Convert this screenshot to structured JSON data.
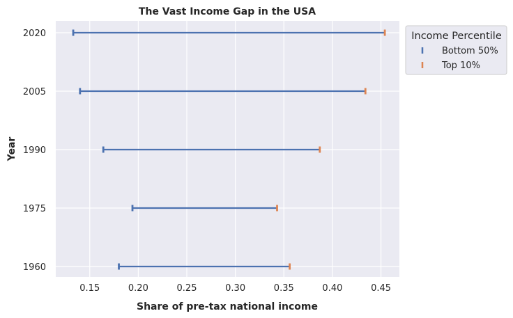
{
  "chart_data": {
    "type": "dumbbell",
    "title": "The Vast Income Gap in the USA",
    "xlabel": "Share of pre-tax national income",
    "ylabel": "Year",
    "xlim": [
      0.115,
      0.469
    ],
    "xticks": [
      "0.15",
      "0.20",
      "0.25",
      "0.30",
      "0.35",
      "0.40",
      "0.45"
    ],
    "categories": [
      "2020",
      "2005",
      "1990",
      "1975",
      "1960"
    ],
    "legend": {
      "title": "Income Percentile",
      "placement": "outside-top-right"
    },
    "series": [
      {
        "name": "Bottom 50%",
        "color": "#4c72b0",
        "values": [
          0.133,
          0.14,
          0.164,
          0.194,
          0.18
        ]
      },
      {
        "name": "Top 10%",
        "color": "#dd8452",
        "values": [
          0.454,
          0.434,
          0.387,
          0.343,
          0.356
        ]
      }
    ],
    "line_color": "#4c72b0",
    "grid": true,
    "background": "#eaeaf2"
  }
}
